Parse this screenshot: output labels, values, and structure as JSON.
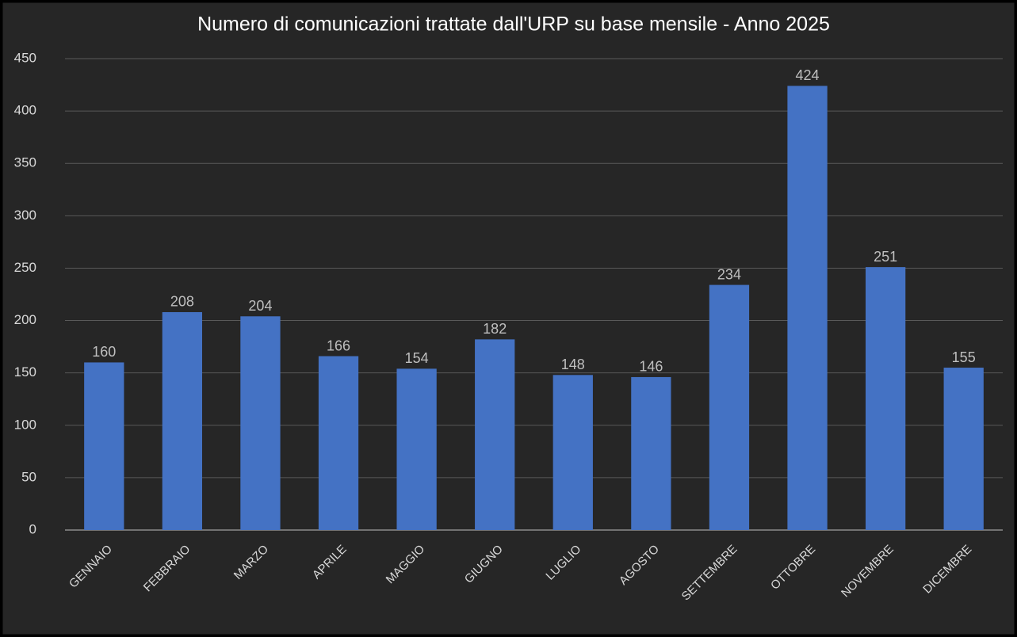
{
  "chart_data": {
    "type": "bar",
    "title": "Numero di comunicazioni trattate dall'URP su base mensile - Anno 2025",
    "categories": [
      "GENNAIO",
      "FEBBRAIO",
      "MARZO",
      "APRILE",
      "MAGGIO",
      "GIUGNO",
      "LUGLIO",
      "AGOSTO",
      "SETTEMBRE",
      "OTTOBRE",
      "NOVEMBRE",
      "DICEMBRE"
    ],
    "values": [
      160,
      208,
      204,
      166,
      154,
      182,
      148,
      146,
      234,
      424,
      251,
      155
    ],
    "color": "#4472c4",
    "ylim": [
      0,
      450
    ],
    "yticks": [
      0,
      50,
      100,
      150,
      200,
      250,
      300,
      350,
      400,
      450
    ],
    "grid": true
  }
}
